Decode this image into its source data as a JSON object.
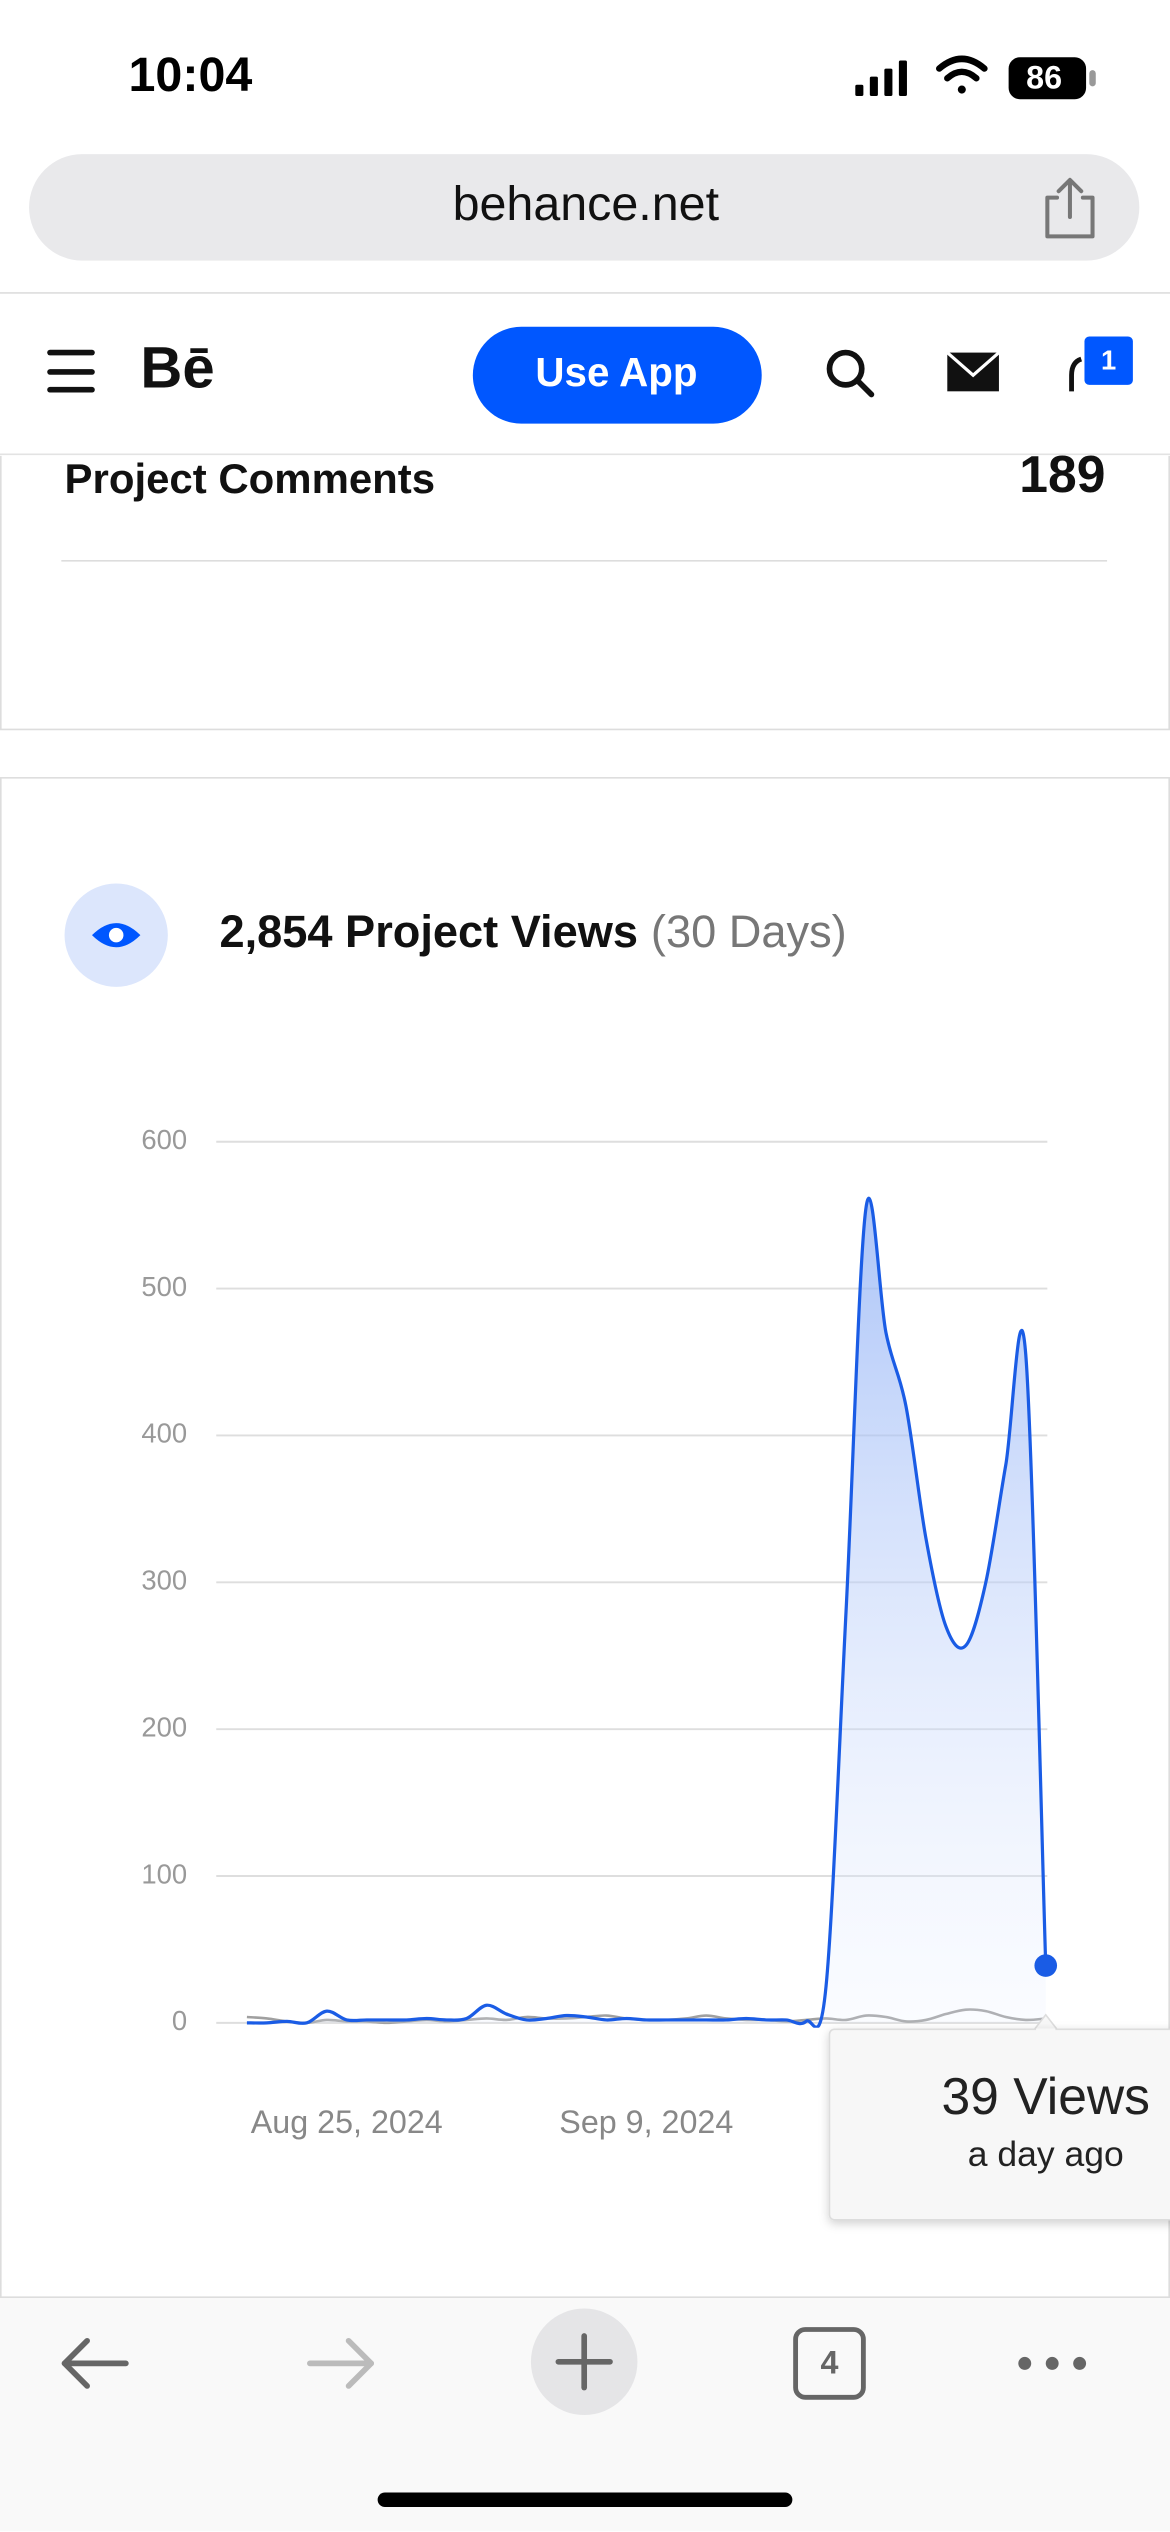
{
  "status_bar": {
    "time": "10:04",
    "battery": 86
  },
  "browser": {
    "url": "behance.net",
    "tab_count": 4
  },
  "nav": {
    "logo": "Bē",
    "button": "Use App",
    "notifications": 1
  },
  "stats": {
    "label": "Project Comments",
    "value": 189
  },
  "chart_data": {
    "type": "line",
    "title": "2,854 Project Views",
    "subtitle": "(30 Days)",
    "x": [
      0,
      1,
      2,
      3,
      4,
      5,
      6,
      7,
      8,
      9,
      10,
      11,
      12,
      13,
      14,
      15,
      16,
      17,
      18,
      19,
      20,
      21,
      22,
      23,
      24,
      25,
      26,
      27,
      28,
      29,
      30,
      31,
      32,
      33,
      34,
      35,
      36,
      37,
      38,
      39,
      40
    ],
    "series": [
      {
        "color": "#1a5ce5",
        "values": [
          0,
          0,
          1,
          0,
          8,
          2,
          2,
          2,
          2,
          3,
          2,
          3,
          12,
          6,
          2,
          3,
          5,
          4,
          2,
          3,
          2,
          2,
          2,
          2,
          2,
          3,
          2,
          2,
          1,
          25,
          280,
          555,
          470,
          420,
          330,
          270,
          257,
          300,
          380,
          455,
          39
        ]
      },
      {
        "color": "#a0a0a0",
        "values": [
          4,
          3,
          1,
          0,
          2,
          1,
          1,
          0,
          1,
          2,
          1,
          2,
          3,
          2,
          4,
          3,
          3,
          4,
          5,
          3,
          2,
          2,
          3,
          5,
          3,
          2,
          2,
          1,
          2,
          3,
          2,
          5,
          4,
          1,
          2,
          6,
          9,
          8,
          4,
          2,
          3
        ]
      }
    ],
    "xlim": [
      0,
      40
    ],
    "xticks": [
      {
        "value": 5,
        "label": "Aug 25, 2024"
      },
      {
        "value": 20,
        "label": "Sep 9, 2024"
      }
    ],
    "ylim": [
      0,
      600
    ],
    "yticks": [
      0,
      100,
      200,
      300,
      400,
      500,
      600
    ],
    "grid": true,
    "tooltip": {
      "value": "39 Views",
      "time": "a day ago"
    }
  }
}
